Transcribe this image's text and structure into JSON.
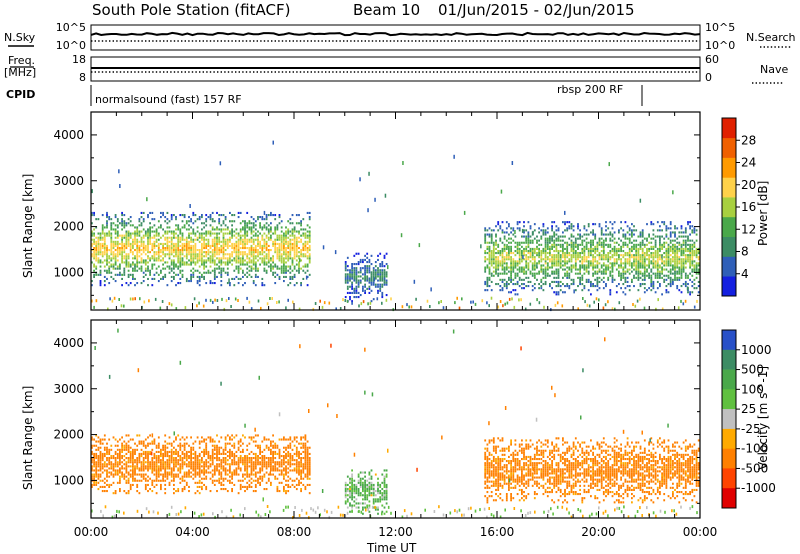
{
  "header": {
    "title": "South Pole Station (fitACF)",
    "beam": "Beam 10",
    "date_range": "01/Jun/2015 - 02/Jun/2015"
  },
  "aux_panels": {
    "nsky_label": "N.Sky",
    "nsky_ticks": [
      "10^5",
      "10^0"
    ],
    "nsearch_label": "N.Search",
    "nsearch_ticks": [
      "10^5",
      "10^0"
    ],
    "freq_label_line1": "Freq.",
    "freq_label_line2": "[MHz]",
    "freq_ticks": [
      "18",
      "8"
    ],
    "nave_label": "Nave",
    "nave_ticks": [
      "60",
      "0"
    ],
    "cpid_label": "CPID",
    "cpid_segments": [
      {
        "label": "normalsound (fast) 157 RF",
        "start_h": 0,
        "end_h": 22
      },
      {
        "label": "rbsp 200 RF",
        "start_h": 22,
        "end_h": 24
      }
    ]
  },
  "chart_data": [
    {
      "type": "heatmap",
      "name": "power",
      "x_unit": "hours",
      "xlim": [
        0,
        24
      ],
      "ylim": [
        180,
        4500
      ],
      "ylabel": "Slant Range [km]",
      "y_ticks": [
        1000,
        2000,
        3000,
        4000
      ],
      "colorbar": {
        "label": "Power [dB]",
        "range": [
          0,
          32
        ],
        "ticks": [
          4,
          8,
          12,
          16,
          20,
          24,
          28
        ],
        "colors": [
          "#1420e0",
          "#2f5fb8",
          "#3c8c64",
          "#4aa84a",
          "#a8d040",
          "#ffd24a",
          "#ff9a00",
          "#f06000",
          "#e02000"
        ]
      },
      "echo_regions": [
        {
          "t0": 0.0,
          "t1": 8.6,
          "r0": 700,
          "r1": 2300,
          "level": 18
        },
        {
          "t0": 10.0,
          "t1": 11.7,
          "r0": 350,
          "r1": 1400,
          "level": 8
        },
        {
          "t0": 15.5,
          "t1": 24.0,
          "r0": 500,
          "r1": 2100,
          "level": 15
        }
      ]
    },
    {
      "type": "heatmap",
      "name": "velocity",
      "x_unit": "hours",
      "xlim": [
        0,
        24
      ],
      "ylim": [
        180,
        4500
      ],
      "ylabel": "Slant Range [km]",
      "y_ticks": [
        1000,
        2000,
        3000,
        4000
      ],
      "xlabel": "Time UT",
      "x_ticks": [
        "00:00",
        "04:00",
        "08:00",
        "12:00",
        "16:00",
        "20:00",
        "00:00"
      ],
      "colorbar": {
        "label": "Velocity [m s^-1]",
        "ticks": [
          "1000",
          "500",
          "100",
          "25",
          "-25",
          "-100",
          "-500",
          "-1000"
        ],
        "colors": [
          "#2850c8",
          "#3c8c64",
          "#4aa84a",
          "#60c040",
          "#c0c0c0",
          "#ffaa00",
          "#ff8000",
          "#ff4400",
          "#e00000"
        ]
      },
      "echo_regions": [
        {
          "t0": 0.0,
          "t1": 8.6,
          "r0": 700,
          "r1": 2000,
          "v": -200
        },
        {
          "t0": 10.0,
          "t1": 11.7,
          "r0": 250,
          "r1": 1200,
          "v": 100
        },
        {
          "t0": 15.5,
          "t1": 24.0,
          "r0": 500,
          "r1": 1900,
          "v": -200
        }
      ]
    }
  ]
}
